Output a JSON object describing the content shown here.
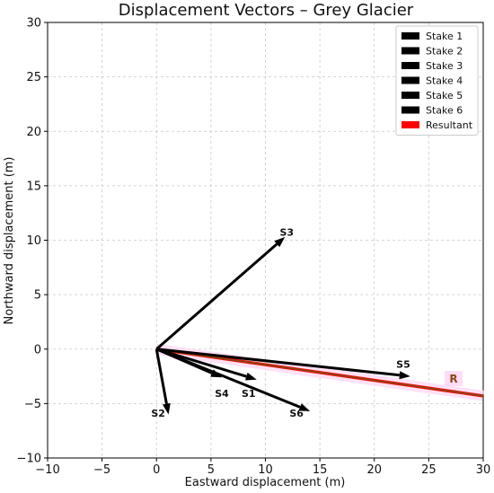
{
  "chart_data": {
    "type": "quiver",
    "title": "Displacement Vectors – Grey Glacier",
    "xlabel": "Eastward displacement (m)",
    "ylabel": "Northward displacement (m)",
    "xlim": [
      -10,
      30
    ],
    "ylim": [
      -10,
      30
    ],
    "xticks": [
      -10,
      -5,
      0,
      5,
      10,
      15,
      20,
      25,
      30
    ],
    "yticks": [
      -10,
      -5,
      0,
      5,
      10,
      15,
      20,
      25,
      30
    ],
    "xtick_labels": [
      "−10",
      "−5",
      "0",
      "5",
      "10",
      "15",
      "20",
      "25",
      "30"
    ],
    "ytick_labels": [
      "−10",
      "−5",
      "0",
      "5",
      "10",
      "15",
      "20",
      "25",
      "30"
    ],
    "grid": true,
    "legend_position": "top-right",
    "origin": [
      0,
      0
    ],
    "vectors": [
      {
        "legend": "Stake 1",
        "label": "S1",
        "dx": 9.2,
        "dy": -2.8,
        "color": "#000000"
      },
      {
        "legend": "Stake 2",
        "label": "S2",
        "dx": 1.1,
        "dy": -6.0,
        "color": "#000000"
      },
      {
        "legend": "Stake 3",
        "label": "S3",
        "dx": 11.8,
        "dy": 10.3,
        "color": "#000000"
      },
      {
        "legend": "Stake 4",
        "label": "S4",
        "dx": 6.0,
        "dy": -2.6,
        "color": "#000000"
      },
      {
        "legend": "Stake 5",
        "label": "S5",
        "dx": 23.3,
        "dy": -2.5,
        "color": "#000000"
      },
      {
        "legend": "Stake 6",
        "label": "S6",
        "dx": 14.1,
        "dy": -5.7,
        "color": "#000000"
      }
    ],
    "resultant": {
      "legend": "Resultant",
      "label": "R",
      "dx": 30.0,
      "dy": -4.3,
      "color": "#ff0000",
      "line_color": "#8b4513",
      "label_color": "#8b4513",
      "highlight_color": "#ffd9f5"
    }
  }
}
